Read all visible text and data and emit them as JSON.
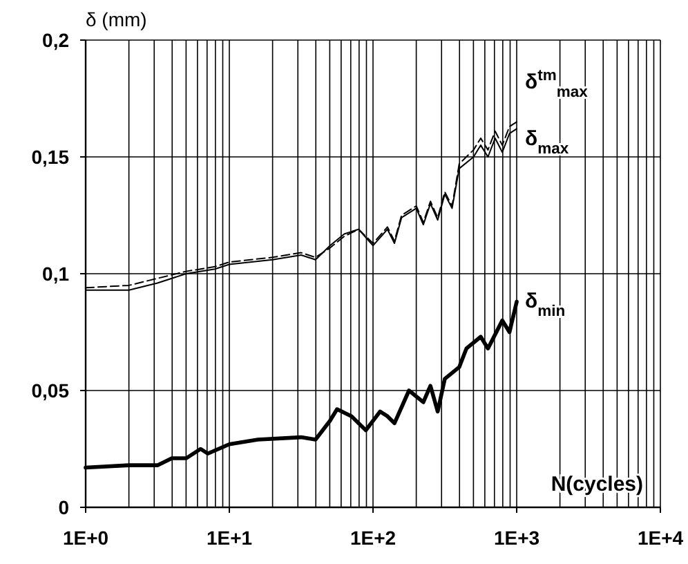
{
  "chart_data": {
    "type": "line",
    "xlabel": "N(cycles)",
    "ylabel": "δ (mm)",
    "log": "x",
    "grid": true,
    "marker": "none",
    "xlim": [
      1,
      10000
    ],
    "xticks": [
      {
        "value": 1,
        "label": "1E+0"
      },
      {
        "value": 10,
        "label": "1E+1"
      },
      {
        "value": 100,
        "label": "1E+2"
      },
      {
        "value": 1000,
        "label": "1E+3"
      },
      {
        "value": 10000,
        "label": "1E+4"
      }
    ],
    "ylim": [
      0,
      0.2
    ],
    "yticks": [
      {
        "value": 0,
        "label": "0"
      },
      {
        "value": 0.05,
        "label": "0,05"
      },
      {
        "value": 0.1,
        "label": "0,1"
      },
      {
        "value": 0.15,
        "label": "0,15"
      },
      {
        "value": 0.2,
        "label": "0,2"
      }
    ],
    "series": [
      {
        "name": "δ$^{tm}$$_{max}$",
        "color": "#000000",
        "line_style": "dashed",
        "x": [
          1,
          2,
          3.16,
          5.01,
          7.94,
          10,
          20,
          31.6,
          39.8,
          50.1,
          63.1,
          79.4,
          100,
          126,
          141,
          158,
          200,
          224,
          251,
          282,
          316,
          355,
          398,
          501,
          562,
          631,
          708,
          794,
          891,
          1000
        ],
        "values": [
          0.094,
          0.095,
          0.098,
          0.101,
          0.103,
          0.105,
          0.107,
          0.109,
          0.107,
          0.111,
          0.116,
          0.119,
          0.113,
          0.12,
          0.114,
          0.125,
          0.129,
          0.122,
          0.131,
          0.124,
          0.135,
          0.129,
          0.147,
          0.153,
          0.158,
          0.153,
          0.161,
          0.155,
          0.163,
          0.165
        ]
      },
      {
        "name": "δ$_{max}$",
        "color": "#000000",
        "line_style": "solid",
        "x": [
          1,
          2,
          3.16,
          5.01,
          7.94,
          10,
          20,
          31.6,
          39.8,
          50.1,
          63.1,
          79.4,
          100,
          126,
          141,
          158,
          200,
          224,
          251,
          282,
          316,
          355,
          398,
          501,
          562,
          631,
          708,
          794,
          891,
          1000
        ],
        "values": [
          0.093,
          0.093,
          0.096,
          0.1,
          0.102,
          0.104,
          0.106,
          0.108,
          0.106,
          0.112,
          0.117,
          0.119,
          0.112,
          0.119,
          0.113,
          0.124,
          0.128,
          0.121,
          0.13,
          0.123,
          0.134,
          0.128,
          0.145,
          0.15,
          0.155,
          0.15,
          0.158,
          0.152,
          0.16,
          0.162
        ]
      },
      {
        "name": "δ$_{min}$",
        "color": "#000000",
        "line_style": "solid",
        "x": [
          1,
          2,
          3.16,
          3.98,
          5.01,
          6.31,
          7.08,
          10,
          15.8,
          31.6,
          39.8,
          50.1,
          56.2,
          70.8,
          89.1,
          112,
          126,
          141,
          178,
          224,
          251,
          282,
          316,
          398,
          447,
          562,
          631,
          794,
          891,
          1000
        ],
        "values": [
          0.017,
          0.018,
          0.018,
          0.021,
          0.021,
          0.025,
          0.023,
          0.027,
          0.029,
          0.03,
          0.029,
          0.037,
          0.042,
          0.039,
          0.033,
          0.041,
          0.039,
          0.036,
          0.05,
          0.045,
          0.052,
          0.041,
          0.055,
          0.06,
          0.068,
          0.073,
          0.068,
          0.08,
          0.075,
          0.088
        ]
      }
    ]
  }
}
